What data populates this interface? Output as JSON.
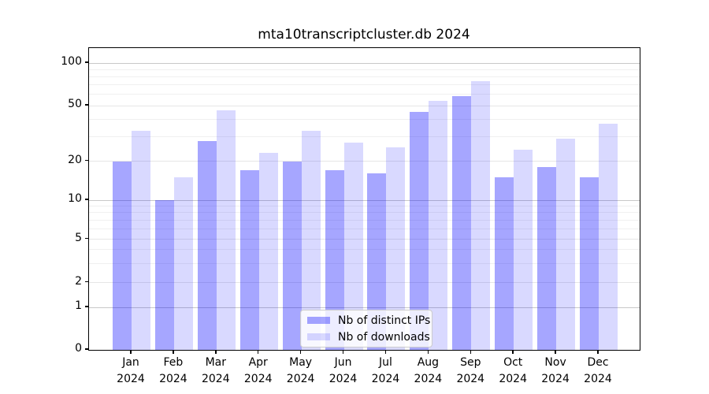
{
  "chart_data": {
    "type": "bar",
    "title": "mta10transcriptcluster.db 2024",
    "categories": [
      "Jan 2024",
      "Feb 2024",
      "Mar 2024",
      "Apr 2024",
      "May 2024",
      "Jun 2024",
      "Jul 2024",
      "Aug 2024",
      "Sep 2024",
      "Oct 2024",
      "Nov 2024",
      "Dec 2024"
    ],
    "series": [
      {
        "name": "Nb of distinct IPs",
        "color": "rgba(0,0,255,0.35)",
        "values": [
          20,
          10,
          28,
          17,
          20,
          17,
          16,
          45,
          58,
          15,
          18,
          15
        ]
      },
      {
        "name": "Nb of downloads",
        "color": "rgba(0,0,255,0.15)",
        "values": [
          33,
          15,
          46,
          23,
          33,
          27,
          25,
          54,
          74,
          24,
          29,
          37
        ]
      }
    ],
    "xlabel": "",
    "ylabel": "",
    "yscale": "log-like with zero baseline",
    "yticks": [
      0,
      1,
      2,
      5,
      10,
      20,
      50,
      100
    ],
    "minor_grid_values": [
      3,
      4,
      6,
      7,
      8,
      9,
      30,
      40,
      60,
      70,
      80,
      90
    ],
    "ylim": [
      0,
      130
    ],
    "grid": true,
    "legend_position": "bottom-center"
  },
  "colors": {
    "bar_dark": "rgba(0,0,255,0.35)",
    "bar_light": "rgba(0,0,255,0.15)",
    "grid_major": "#c8c8c8",
    "grid_mid": "#e6e6e6",
    "grid_minor": "#f0f0f0",
    "axis": "#000000",
    "legend_border": "#cccccc"
  }
}
